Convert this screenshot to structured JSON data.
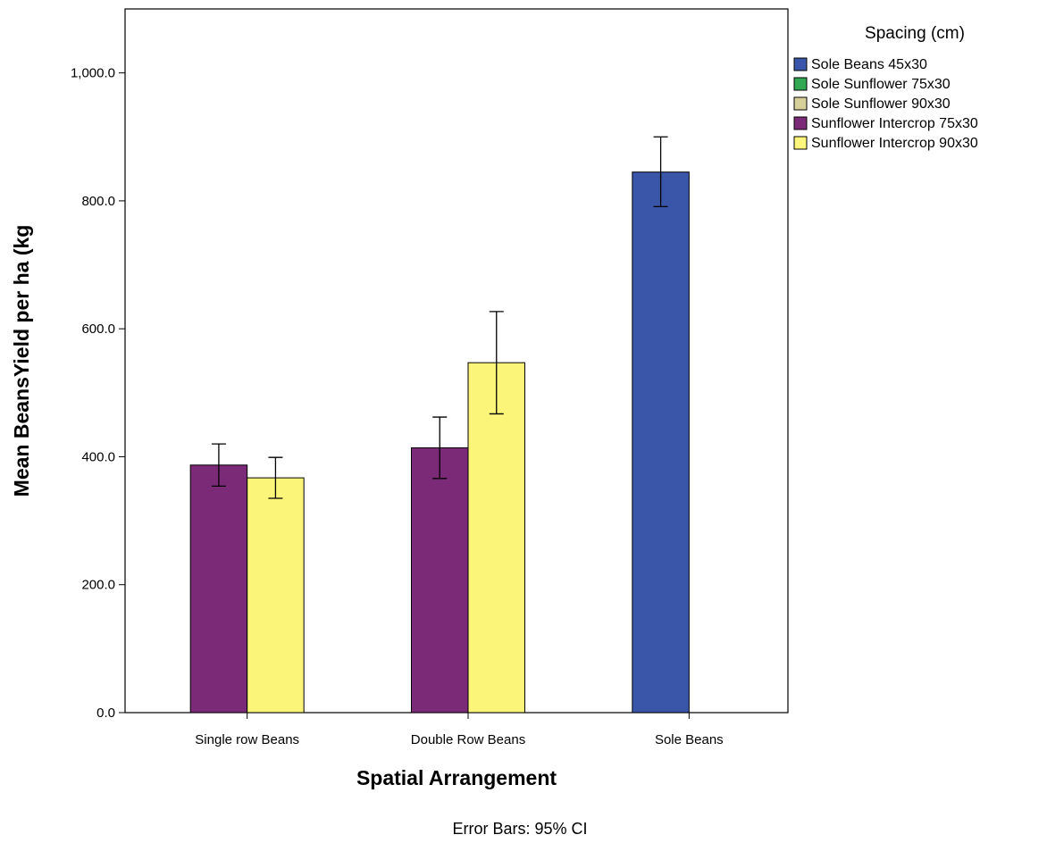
{
  "chart_data": {
    "type": "bar",
    "xlabel": "Spatial Arrangement",
    "ylabel": "Mean BeansYield per  ha (kg",
    "ylim": [
      0,
      1100
    ],
    "yticks": [
      0,
      200,
      400,
      600,
      800,
      1000
    ],
    "ytick_labels": [
      "0.0",
      "200.0",
      "400.0",
      "600.0",
      "800.0",
      "1,000.0"
    ],
    "categories": [
      "Single row Beans",
      "Double Row Beans",
      "Sole Beans"
    ],
    "legend": {
      "title": "Spacing (cm)",
      "position": "right",
      "items": [
        {
          "label": "Sole Beans 45x30",
          "color": "#3a56a8"
        },
        {
          "label": "Sole Sunflower 75x30",
          "color": "#32a852"
        },
        {
          "label": "Sole Sunflower 90x30",
          "color": "#d6cf9a"
        },
        {
          "label": "Sunflower Intercrop 75x30",
          "color": "#7b2a78"
        },
        {
          "label": "Sunflower Intercrop 90x30",
          "color": "#fbf57a"
        }
      ]
    },
    "bars": [
      {
        "category": "Single row Beans",
        "series": "Sunflower Intercrop 75x30",
        "value": 387,
        "ci_low": 354,
        "ci_high": 420,
        "color": "#7b2a78",
        "slot": 0
      },
      {
        "category": "Single row Beans",
        "series": "Sunflower Intercrop 90x30",
        "value": 367,
        "ci_low": 335,
        "ci_high": 399,
        "color": "#fbf57a",
        "slot": 1
      },
      {
        "category": "Double Row Beans",
        "series": "Sunflower Intercrop 75x30",
        "value": 414,
        "ci_low": 366,
        "ci_high": 462,
        "color": "#7b2a78",
        "slot": 0
      },
      {
        "category": "Double Row Beans",
        "series": "Sunflower Intercrop 90x30",
        "value": 547,
        "ci_low": 467,
        "ci_high": 627,
        "color": "#fbf57a",
        "slot": 1
      },
      {
        "category": "Sole Beans",
        "series": "Sole Beans 45x30",
        "value": 845,
        "ci_low": 791,
        "ci_high": 900,
        "color": "#3a56a8",
        "slot": 0
      }
    ],
    "footnote": "Error Bars: 95% CI"
  }
}
